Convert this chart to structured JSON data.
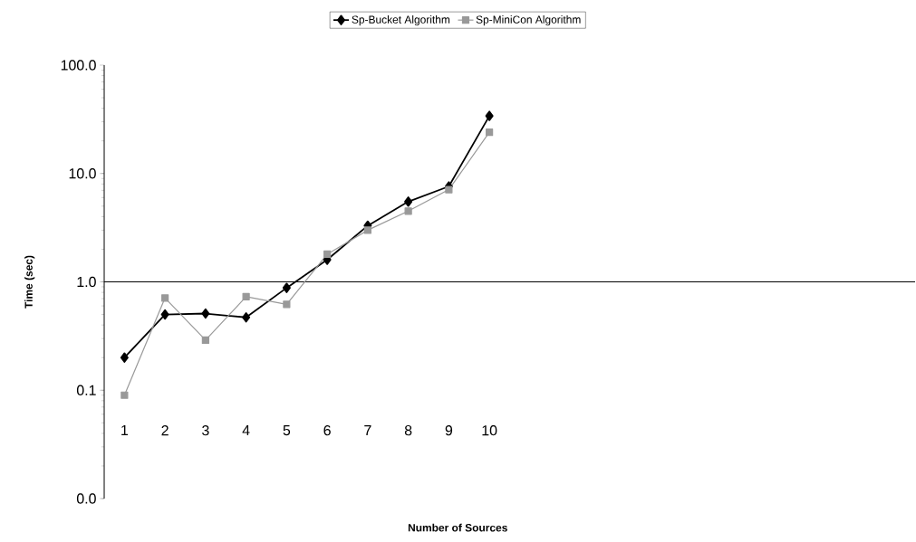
{
  "chart_data": {
    "type": "line",
    "xlabel": "Number of Sources",
    "ylabel": "Time (sec)",
    "log": "y",
    "legend": "top",
    "categories": [
      "1",
      "2",
      "3",
      "4",
      "5",
      "6",
      "7",
      "8",
      "9",
      "10",
      null,
      null,
      null,
      null,
      null,
      null,
      null,
      null,
      null,
      null
    ],
    "ylim": [
      0.01,
      100
    ],
    "yticks": [
      {
        "value": 0.01,
        "label": "0.0"
      },
      0.1,
      {
        "value": 1,
        "label": "1.0"
      },
      {
        "value": 10,
        "label": "10.0"
      },
      {
        "value": 100,
        "label": "100.0"
      }
    ],
    "series": [
      {
        "name": "Sp-Bucket Algorithm",
        "color": "#000000",
        "marker": "diamond",
        "values": [
          0.2,
          0.5,
          0.51,
          0.47,
          0.88,
          1.6,
          3.3,
          5.5,
          7.6,
          34,
          null,
          null,
          null,
          null,
          null,
          null,
          null,
          null,
          null,
          null
        ]
      },
      {
        "name": "Sp-MiniCon Algorithm",
        "color": "#999999",
        "marker": "square",
        "values": [
          0.09,
          0.71,
          0.29,
          0.73,
          0.62,
          1.8,
          3.0,
          4.5,
          7.1,
          24,
          null,
          null,
          null,
          null,
          null,
          null,
          null,
          null,
          null,
          null
        ]
      }
    ]
  }
}
